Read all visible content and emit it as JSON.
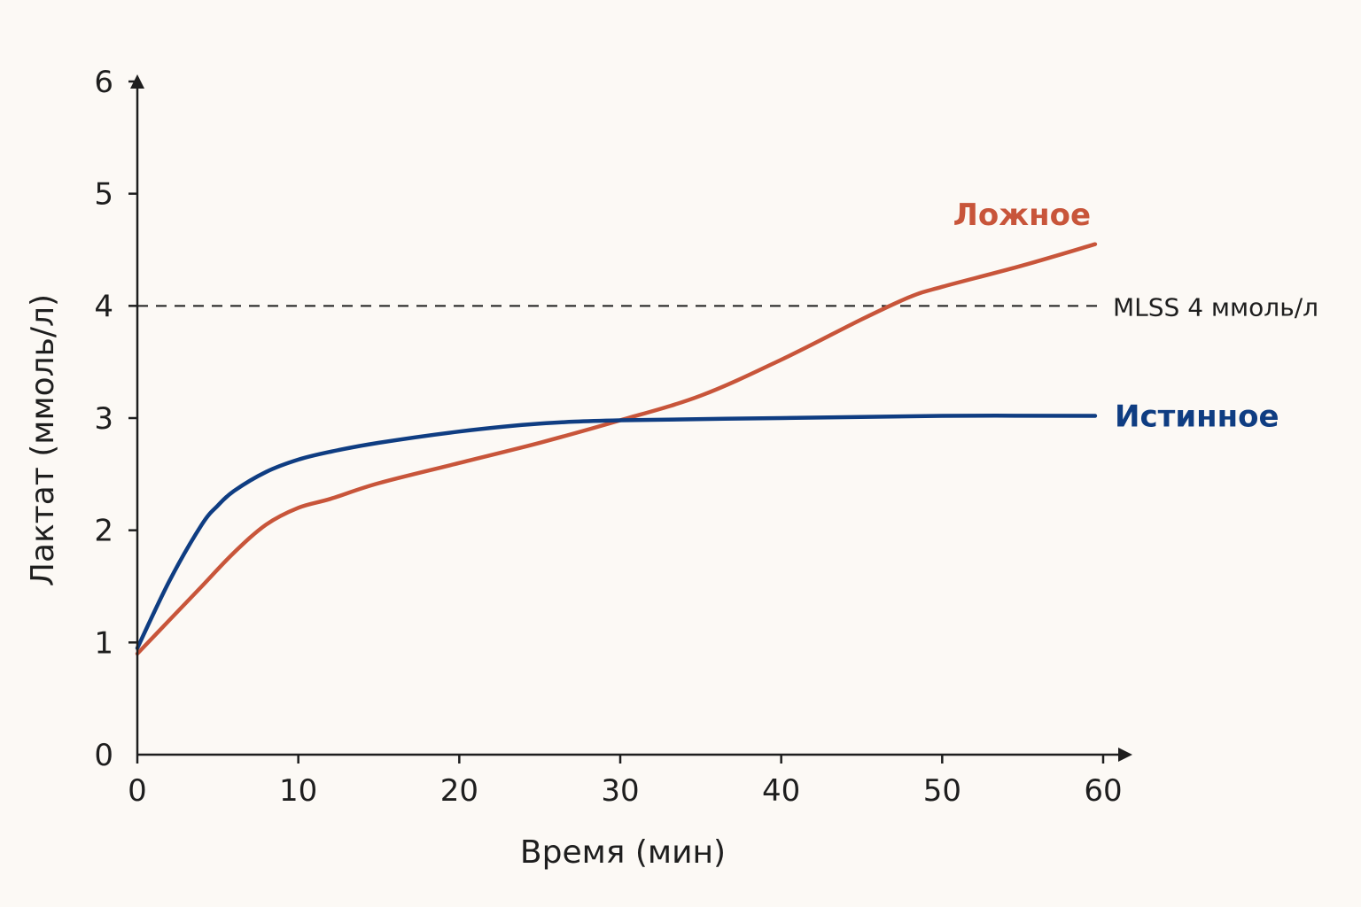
{
  "chart_data": {
    "type": "line",
    "title": "",
    "xlabel": "Время (мин)",
    "ylabel": "Лактат (ммоль/л)",
    "xlim": [
      0,
      60
    ],
    "ylim": [
      0,
      6
    ],
    "x_ticks": [
      0,
      10,
      20,
      30,
      40,
      50,
      60
    ],
    "y_ticks": [
      0,
      1,
      2,
      3,
      4,
      5,
      6
    ],
    "grid": false,
    "legend": "inline labels at line ends",
    "reference_line": {
      "y": 4,
      "label": "MLSS 4 ммоль/л",
      "style": "dashed"
    },
    "series": [
      {
        "name": "Ложное",
        "color": "#c8553a",
        "x": [
          0,
          2,
          4,
          6,
          8,
          10,
          12,
          15,
          20,
          25,
          30,
          35,
          40,
          45,
          48,
          50,
          55,
          59.5
        ],
        "y": [
          0.9,
          1.2,
          1.5,
          1.8,
          2.05,
          2.2,
          2.28,
          2.42,
          2.6,
          2.78,
          2.98,
          3.2,
          3.52,
          3.88,
          4.08,
          4.17,
          4.36,
          4.55
        ]
      },
      {
        "name": "Истинное",
        "color": "#0f3d82",
        "x": [
          0,
          2,
          4,
          5,
          6,
          8,
          10,
          12,
          15,
          20,
          25,
          30,
          40,
          50,
          59.5
        ],
        "y": [
          0.95,
          1.55,
          2.05,
          2.22,
          2.35,
          2.52,
          2.63,
          2.7,
          2.78,
          2.88,
          2.95,
          2.98,
          3.0,
          3.02,
          3.02
        ]
      }
    ]
  }
}
